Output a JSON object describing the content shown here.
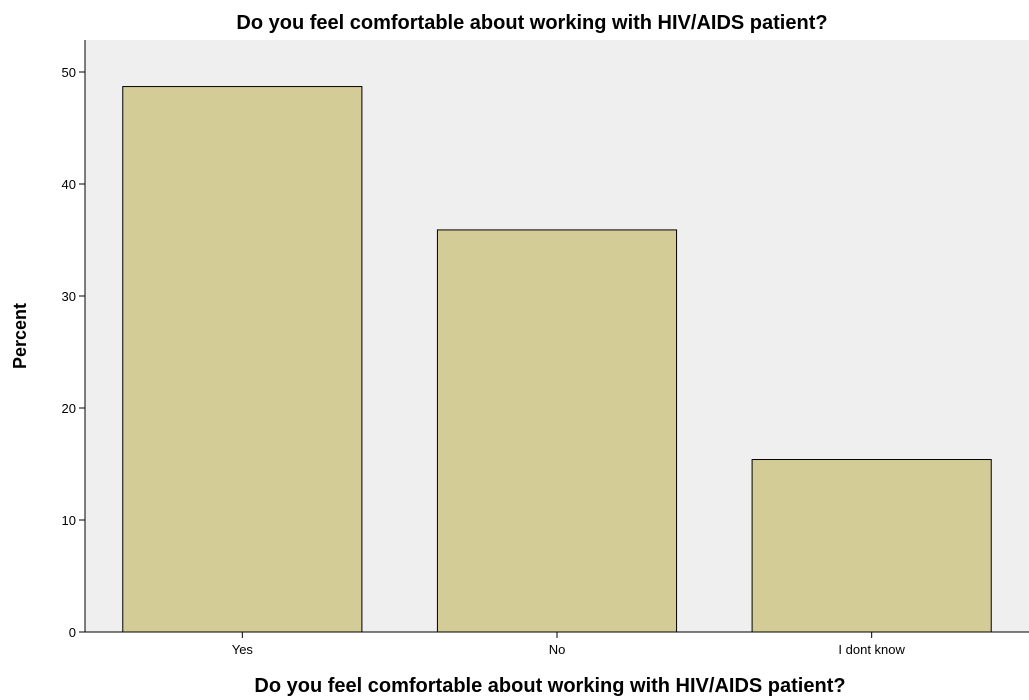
{
  "chart_data": {
    "type": "bar",
    "title": "Do you feel comfortable about working with HIV/AIDS patient?",
    "xlabel": "Do you feel comfortable about working with HIV/AIDS patient?",
    "ylabel": "Percent",
    "categories": [
      "Yes",
      "No",
      "I dont know"
    ],
    "values": [
      48.7,
      35.9,
      15.4
    ],
    "ylim": [
      0,
      50
    ],
    "yticks": [
      "0",
      "10",
      "20",
      "30",
      "40",
      "50"
    ],
    "grid": false,
    "legend": "none",
    "colors": {
      "plot_background": "#efefef",
      "bar_fill": "#d4cc96",
      "bar_stroke": "#000000"
    }
  }
}
